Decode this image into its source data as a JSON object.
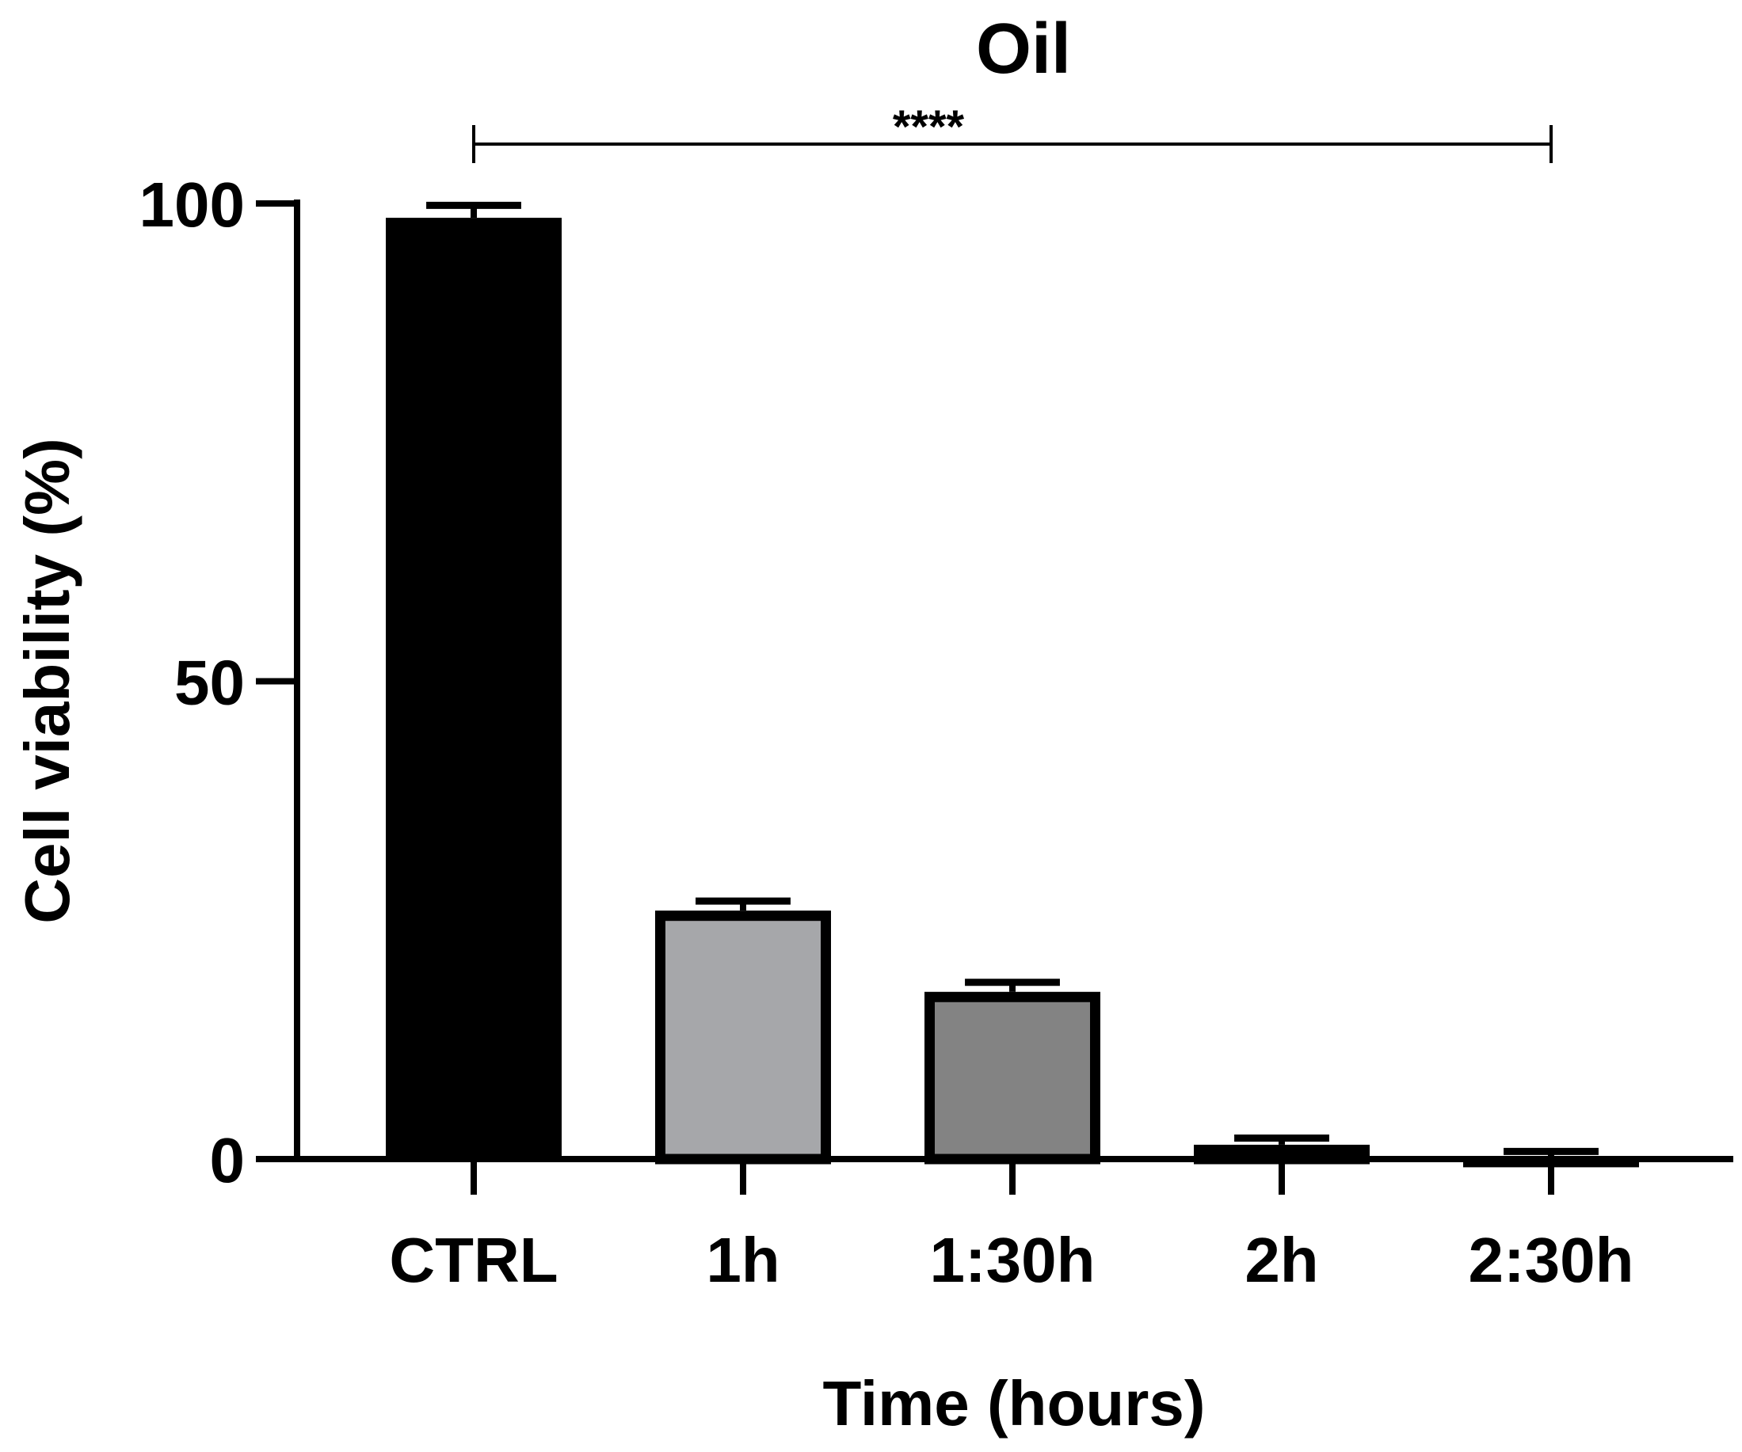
{
  "chart_data": {
    "type": "bar",
    "title": "Oil",
    "xlabel": "Time (hours)",
    "ylabel": "Cell viability (%)",
    "categories": [
      "CTRL",
      "1h",
      "1:30h",
      "2h",
      "2:30h"
    ],
    "values": [
      98.5,
      26.0,
      17.5,
      1.5,
      0.3
    ],
    "errors": [
      1.3,
      1.0,
      1.0,
      0.7,
      0.5
    ],
    "ylim": [
      0,
      100
    ],
    "yticks": [
      0,
      50,
      100
    ],
    "grid": false,
    "legend": "none",
    "bar_colors": [
      "#000000",
      "#a6a7aa",
      "#838383",
      "#ffffff",
      "#ffffff"
    ],
    "significance": {
      "label": "****",
      "from": "CTRL",
      "to": "2:30h"
    }
  }
}
